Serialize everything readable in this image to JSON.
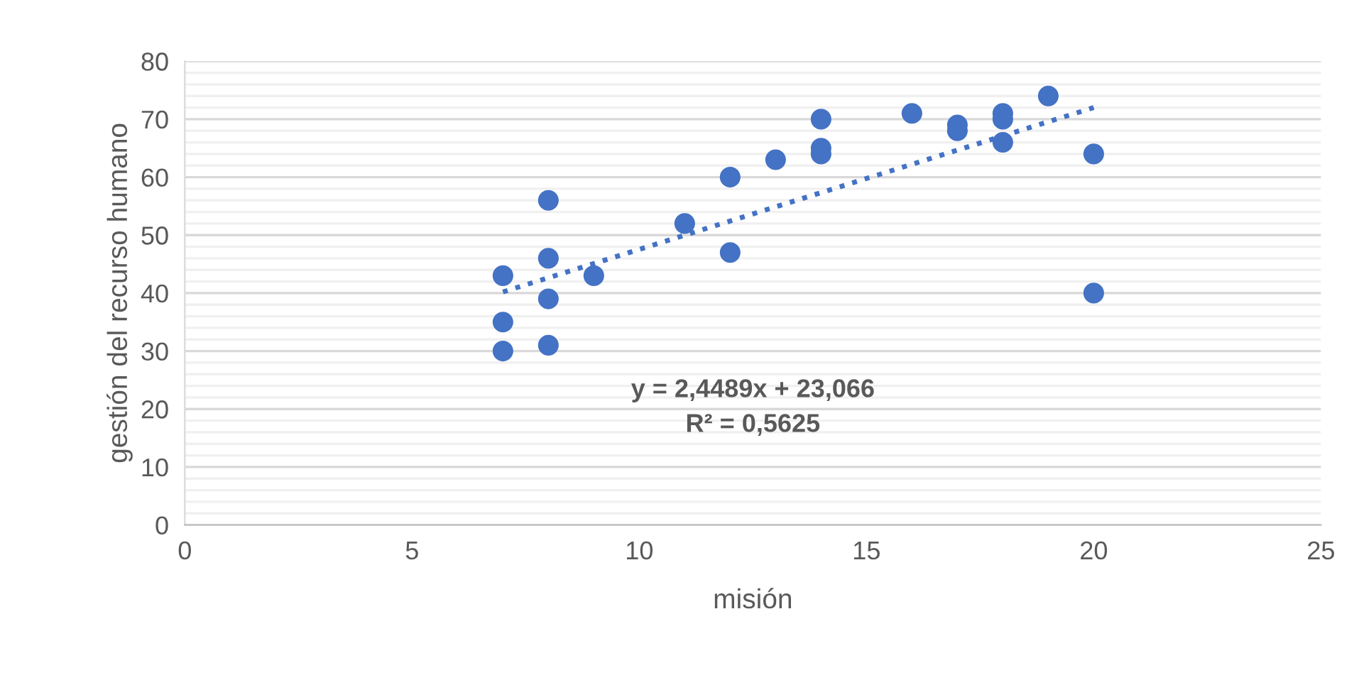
{
  "chart_data": {
    "type": "scatter",
    "xlabel": "misión",
    "ylabel": "gestión del recurso humano",
    "xlim": [
      0,
      25
    ],
    "xticks": [
      0,
      5,
      10,
      15,
      20,
      25
    ],
    "ylim": [
      0,
      80
    ],
    "yticks": [
      0,
      {
        "value": 2,
        "label": null
      },
      {
        "value": 4,
        "label": null
      },
      {
        "value": 6,
        "label": null
      },
      {
        "value": 8,
        "label": null
      },
      10,
      {
        "value": 12,
        "label": null
      },
      {
        "value": 14,
        "label": null
      },
      {
        "value": 16,
        "label": null
      },
      {
        "value": 18,
        "label": null
      },
      20,
      {
        "value": 22,
        "label": null
      },
      {
        "value": 24,
        "label": null
      },
      {
        "value": 26,
        "label": null
      },
      {
        "value": 28,
        "label": null
      },
      30,
      {
        "value": 32,
        "label": null
      },
      {
        "value": 34,
        "label": null
      },
      {
        "value": 36,
        "label": null
      },
      {
        "value": 38,
        "label": null
      },
      40,
      {
        "value": 42,
        "label": null
      },
      {
        "value": 44,
        "label": null
      },
      {
        "value": 46,
        "label": null
      },
      {
        "value": 48,
        "label": null
      },
      50,
      {
        "value": 52,
        "label": null
      },
      {
        "value": 54,
        "label": null
      },
      {
        "value": 56,
        "label": null
      },
      {
        "value": 58,
        "label": null
      },
      60,
      {
        "value": 62,
        "label": null
      },
      {
        "value": 64,
        "label": null
      },
      {
        "value": 66,
        "label": null
      },
      {
        "value": 68,
        "label": null
      },
      70,
      {
        "value": 72,
        "label": null
      },
      {
        "value": 74,
        "label": null
      },
      {
        "value": 76,
        "label": null
      },
      {
        "value": 78,
        "label": null
      },
      80
    ],
    "grid": "y",
    "legend": false,
    "annotations": [
      "y = 2,4489x + 23,066",
      "R² = 0,5625"
    ],
    "series": [
      {
        "color": "#4472c4",
        "marker": "circle",
        "x": [
          7,
          7,
          7,
          8,
          8,
          8,
          8,
          9,
          11,
          12,
          12,
          13,
          14,
          14,
          14,
          16,
          17,
          17,
          18,
          18,
          18,
          19,
          20,
          20
        ],
        "values": [
          43,
          35,
          30,
          56,
          46,
          39,
          31,
          43,
          52,
          60,
          47,
          63,
          70,
          65,
          64,
          71,
          69,
          68,
          71,
          70,
          66,
          74,
          64,
          40
        ]
      },
      {
        "type": "line",
        "color": "#4472c4",
        "line_style": "dotted",
        "marker": "none",
        "x": [
          7,
          20
        ],
        "values": [
          40.2,
          72.0
        ]
      }
    ]
  }
}
